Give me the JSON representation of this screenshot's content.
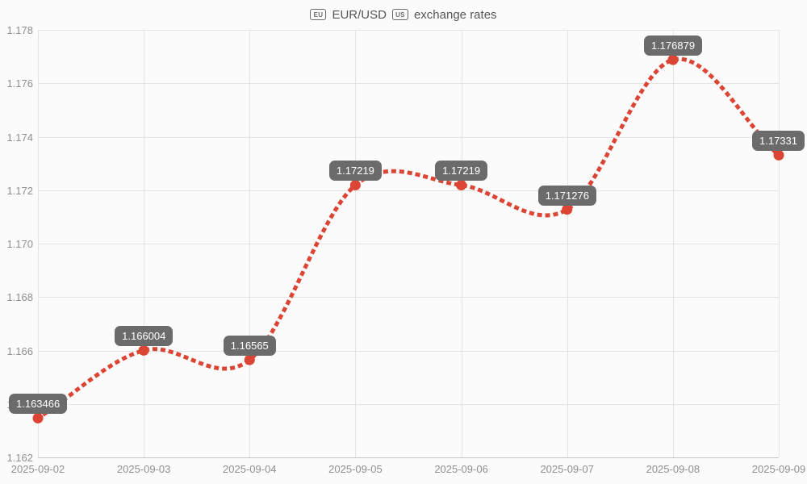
{
  "title": {
    "eu_badge": "EU",
    "pair": "EUR/USD",
    "us_badge": "US",
    "suffix": "exchange rates"
  },
  "colors": {
    "line": "#dc4433",
    "point": "#dc4433",
    "label_bg": "#6b6b6b",
    "label_text": "#ffffff",
    "grid": "#e4e4e4",
    "axis": "#c6c6c6",
    "tick_text": "#8f8f8f",
    "title_text": "#565656",
    "background": "#fbfbfb"
  },
  "chart_data": {
    "type": "line",
    "title": "EUR/USD exchange rates",
    "categories": [
      "2025-09-02",
      "2025-09-03",
      "2025-09-04",
      "2025-09-05",
      "2025-09-06",
      "2025-09-07",
      "2025-09-08",
      "2025-09-09"
    ],
    "values": [
      1.163466,
      1.166004,
      1.16565,
      1.17219,
      1.17219,
      1.171276,
      1.176879,
      1.17331
    ],
    "point_labels": [
      "1.163466",
      "1.166004",
      "1.16565",
      "1.17219",
      "1.17219",
      "1.171276",
      "1.176879",
      "1.17331"
    ],
    "xlabel": "",
    "ylabel": "",
    "ylim": [
      1.162,
      1.178
    ],
    "ytick_step": 0.002,
    "ytick_labels": [
      "1.162",
      "1.164",
      "1.166",
      "1.168",
      "1.170",
      "1.172",
      "1.174",
      "1.176",
      "1.178"
    ],
    "grid": true,
    "legend": false,
    "line_style": "dotted",
    "curve": "catmull-rom",
    "marker": "circle"
  }
}
